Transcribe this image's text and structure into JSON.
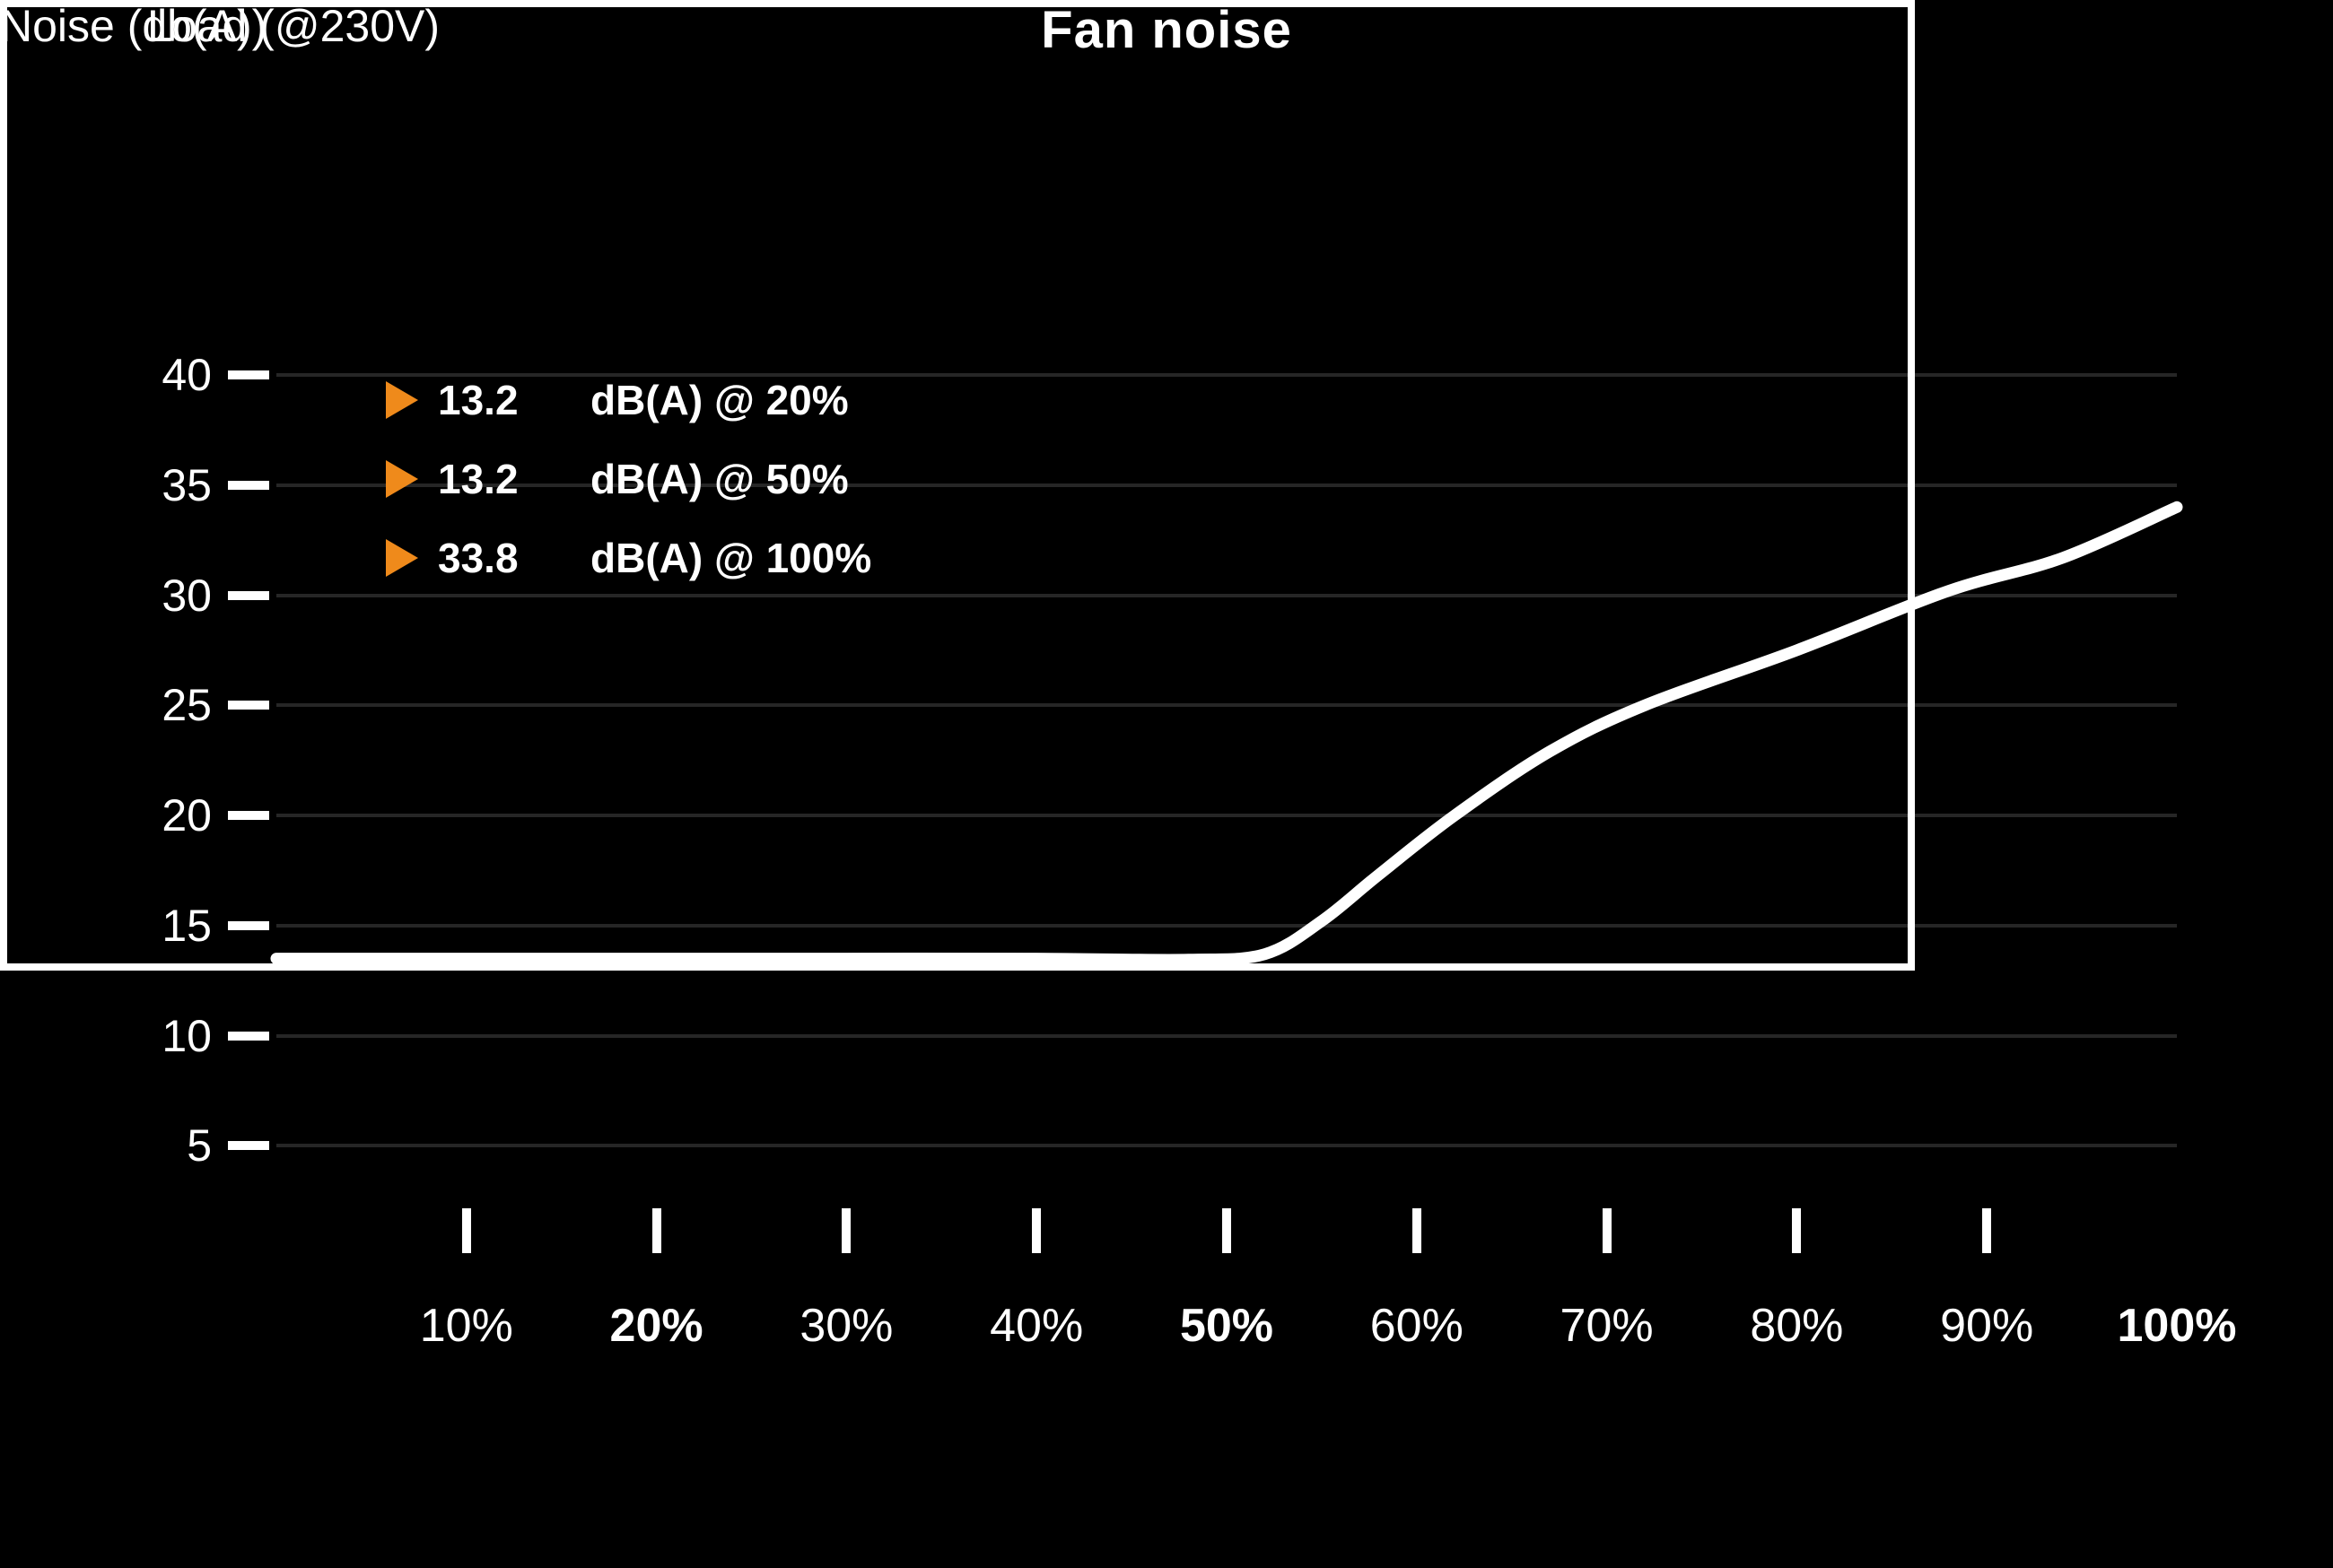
{
  "title": "Fan noise",
  "y_axis_label": "Noise (db(A))",
  "x_axis_label": "Load (@230V)",
  "legend": [
    {
      "value": "13.2",
      "label": "dB(A) @ 20%"
    },
    {
      "value": "13.2",
      "label": "dB(A) @ 50%"
    },
    {
      "value": "33.8",
      "label": "dB(A) @ 100%"
    }
  ],
  "chart_data": {
    "type": "line",
    "title": "Fan noise",
    "xlabel": "Load (@230V)",
    "ylabel": "Noise (db(A))",
    "xlim": [
      0,
      100
    ],
    "ylim": [
      0,
      44
    ],
    "x_tick_labels": [
      "10%",
      "20%",
      "30%",
      "40%",
      "50%",
      "60%",
      "70%",
      "80%",
      "90%",
      "100%"
    ],
    "bold_x_tick_labels": [
      "20%",
      "50%",
      "100%"
    ],
    "y_ticks": [
      5,
      10,
      15,
      20,
      25,
      30,
      35,
      40
    ],
    "grid": "horizontal-only",
    "legend_position": "top-left-inside",
    "series": [
      {
        "name": "fan-noise-curve",
        "x": [
          0,
          10,
          20,
          30,
          40,
          48,
          52,
          55,
          58,
          62,
          67,
          72,
          80,
          88,
          94,
          100
        ],
        "y": [
          13.5,
          13.5,
          13.5,
          13.5,
          13.5,
          13.45,
          13.7,
          15.2,
          17.3,
          20.0,
          22.9,
          25.0,
          27.5,
          30.2,
          31.7,
          34.0
        ]
      }
    ],
    "key_points": [
      {
        "load_pct": 20,
        "noise_db": 13.2
      },
      {
        "load_pct": 50,
        "noise_db": 13.2
      },
      {
        "load_pct": 100,
        "noise_db": 33.8
      }
    ]
  },
  "colors": {
    "background": "#000000",
    "foreground": "#ffffff",
    "accent_orange": "#EF8A1B",
    "gridline": "#262626"
  }
}
